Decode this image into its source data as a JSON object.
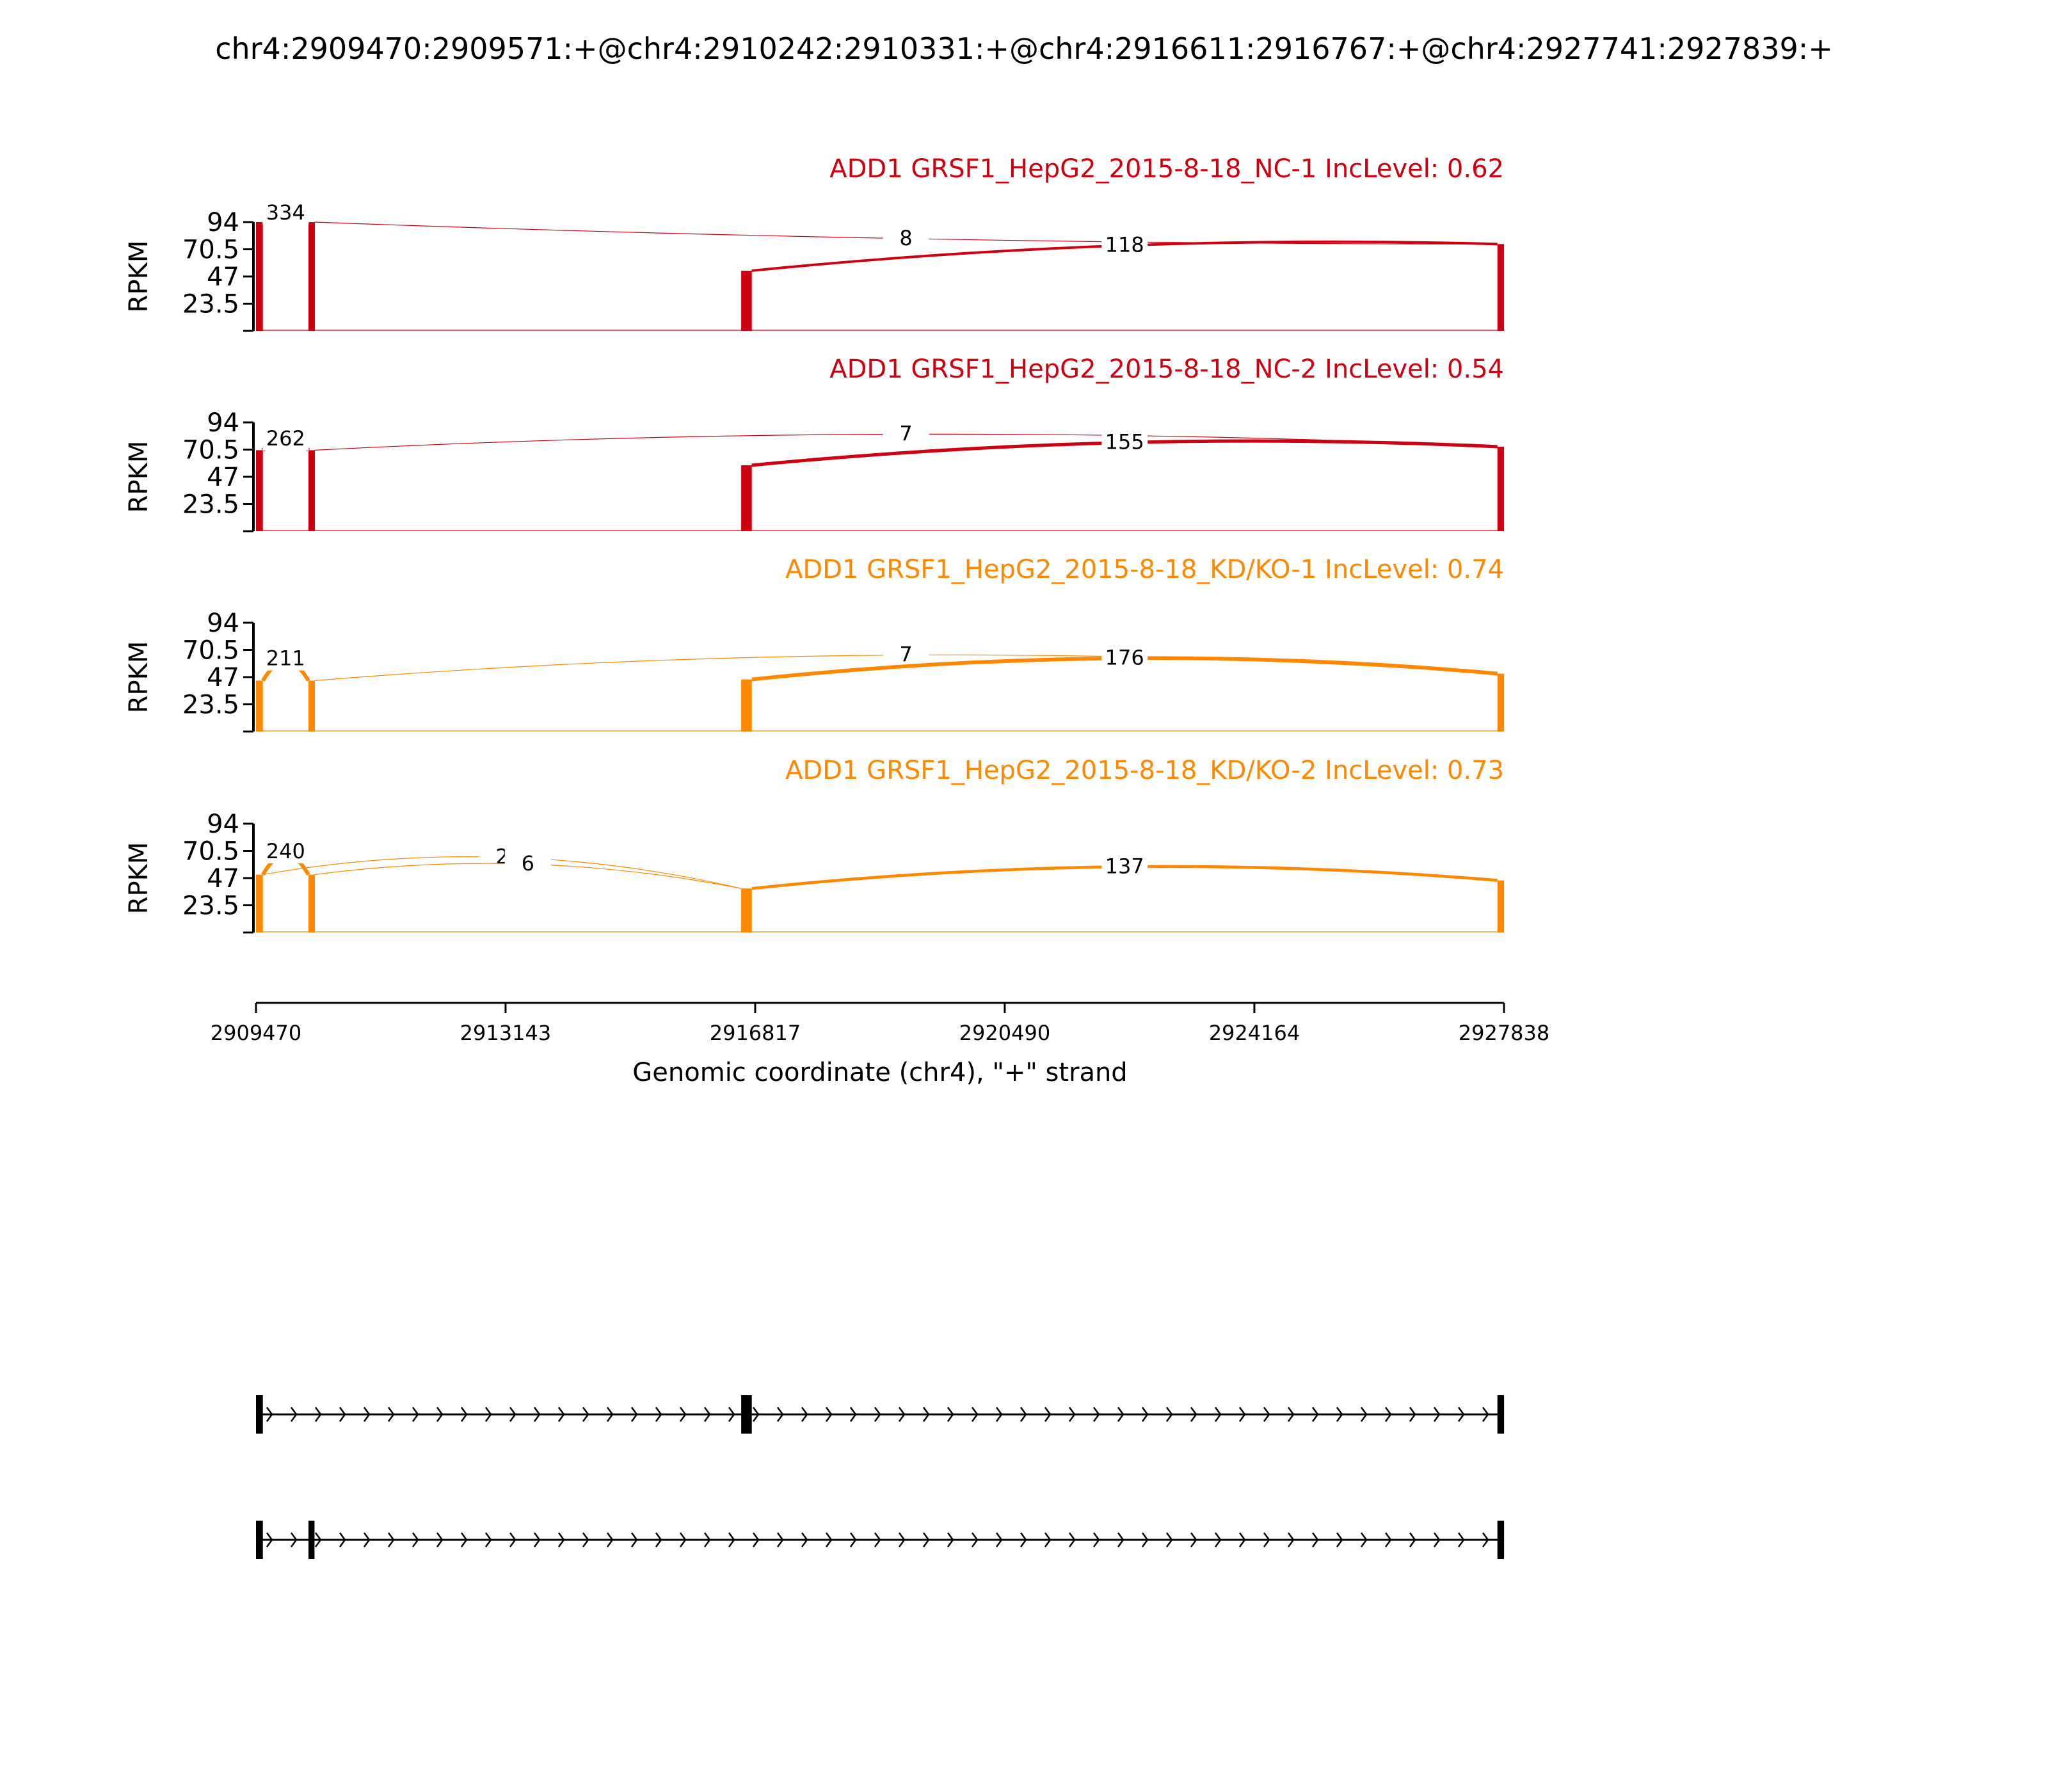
{
  "title": "chr4:2909470:2909571:+@chr4:2910242:2910331:+@chr4:2916611:2916767:+@chr4:2927741:2927839:+",
  "chart_data": {
    "type": "sashimi",
    "x_range": [
      2909470,
      2927838
    ],
    "x_ticks": [
      "2909470",
      "2913143",
      "2916817",
      "2920490",
      "2924164",
      "2927838"
    ],
    "xlabel": "Genomic coordinate (chr4), \"+\" strand",
    "ylabel": "RPKM",
    "y_ticks": [
      "94",
      "70.5",
      "47",
      "23.5"
    ],
    "ylim": [
      0,
      94
    ],
    "exons": [
      [
        2909470,
        2909571
      ],
      [
        2910242,
        2910331
      ],
      [
        2916611,
        2916767
      ],
      [
        2927741,
        2927839
      ]
    ],
    "tracks": [
      {
        "label": "ADD1 GRSF1_HepG2_2015-8-18_NC-1 IncLevel: 0.62",
        "color": "#cc0011",
        "coverage": [
          {
            "exon": 0,
            "level": 94
          },
          {
            "exon": 1,
            "level": 94
          },
          {
            "exon": 2,
            "level": 52
          },
          {
            "exon": 3,
            "level": 75
          }
        ],
        "junctions": [
          {
            "from": 2909571,
            "to": 2910242,
            "count": "334",
            "top": 94
          },
          {
            "from": 2910331,
            "to": 2927741,
            "count": "8",
            "top": 75
          },
          {
            "from": 2916767,
            "to": 2927741,
            "count": "118",
            "top": 62
          }
        ]
      },
      {
        "label": "ADD1 GRSF1_HepG2_2015-8-18_NC-2 IncLevel: 0.54",
        "color": "#cc0011",
        "coverage": [
          {
            "exon": 0,
            "level": 70
          },
          {
            "exon": 1,
            "level": 70
          },
          {
            "exon": 2,
            "level": 57
          },
          {
            "exon": 3,
            "level": 73
          }
        ],
        "junctions": [
          {
            "from": 2909571,
            "to": 2910242,
            "count": "262",
            "top": 72
          },
          {
            "from": 2910331,
            "to": 2927741,
            "count": "7",
            "top": 74
          },
          {
            "from": 2916767,
            "to": 2927741,
            "count": "155",
            "top": 66
          }
        ]
      },
      {
        "label": "ADD1 GRSF1_HepG2_2015-8-18_KD/KO-1 IncLevel: 0.74",
        "color": "#ff8800",
        "coverage": [
          {
            "exon": 0,
            "level": 44
          },
          {
            "exon": 1,
            "level": 44
          },
          {
            "exon": 2,
            "level": 45
          },
          {
            "exon": 3,
            "level": 50
          }
        ],
        "junctions": [
          {
            "from": 2909571,
            "to": 2910242,
            "count": "211",
            "top": 55
          },
          {
            "from": 2910331,
            "to": 2927741,
            "count": "7",
            "top": 63
          },
          {
            "from": 2916767,
            "to": 2927741,
            "count": "176",
            "top": 57
          }
        ]
      },
      {
        "label": "ADD1 GRSF1_HepG2_2015-8-18_KD/KO-2 IncLevel: 0.73",
        "color": "#ff8800",
        "coverage": [
          {
            "exon": 0,
            "level": 50
          },
          {
            "exon": 1,
            "level": 50
          },
          {
            "exon": 2,
            "level": 38
          },
          {
            "exon": 3,
            "level": 45
          }
        ],
        "junctions": [
          {
            "from": 2909571,
            "to": 2910242,
            "count": "240",
            "top": 62
          },
          {
            "from": 2909571,
            "to": 2916611,
            "count": "2",
            "top": 64
          },
          {
            "from": 2910331,
            "to": 2916611,
            "count": "6",
            "top": 52
          },
          {
            "from": 2916767,
            "to": 2927741,
            "count": "137",
            "top": 50
          }
        ]
      }
    ],
    "isoforms": [
      {
        "exons": [
          [
            2909470,
            2909571
          ],
          [
            2916611,
            2916767
          ],
          [
            2927741,
            2927839
          ]
        ]
      },
      {
        "exons": [
          [
            2909470,
            2909571
          ],
          [
            2910242,
            2910331
          ],
          [
            2927741,
            2927839
          ]
        ]
      }
    ]
  }
}
